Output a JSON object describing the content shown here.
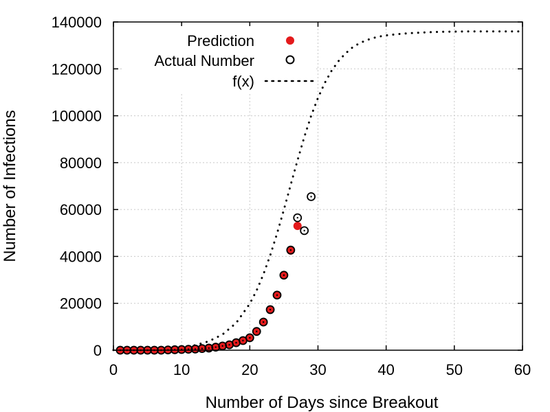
{
  "chart_data": {
    "type": "scatter",
    "xlabel": "Number of Days since Breakout",
    "ylabel": "Number of Infections",
    "xlim": [
      0,
      60
    ],
    "ylim": [
      0,
      140000
    ],
    "xticks": [
      0,
      10,
      20,
      30,
      40,
      50,
      60
    ],
    "yticks": [
      0,
      20000,
      40000,
      60000,
      80000,
      100000,
      120000,
      140000
    ],
    "grid": true,
    "legend_position": "top-left",
    "series": [
      {
        "name": "Prediction",
        "marker": "filled-circle",
        "color": "#e41a1c",
        "x": [
          1,
          2,
          3,
          4,
          5,
          6,
          7,
          8,
          9,
          10,
          11,
          12,
          13,
          14,
          15,
          16,
          17,
          18,
          19,
          20,
          21,
          22,
          23,
          24,
          25,
          26,
          27
        ],
        "y": [
          0,
          0,
          0,
          0,
          0,
          0,
          0,
          100,
          200,
          300,
          400,
          500,
          700,
          900,
          1300,
          1800,
          2300,
          3200,
          4100,
          5300,
          8000,
          12000,
          17300,
          23500,
          32000,
          42500,
          53000
        ]
      },
      {
        "name": "Actual Number",
        "marker": "open-circle",
        "color": "#000000",
        "x": [
          1,
          2,
          3,
          4,
          5,
          6,
          7,
          8,
          9,
          10,
          11,
          12,
          13,
          14,
          15,
          16,
          17,
          18,
          19,
          20,
          21,
          22,
          23,
          24,
          25,
          26,
          27,
          28,
          29
        ],
        "y": [
          0,
          0,
          0,
          0,
          0,
          0,
          0,
          100,
          200,
          300,
          400,
          500,
          700,
          900,
          1300,
          1800,
          2300,
          3200,
          4100,
          5300,
          8000,
          12000,
          17300,
          23500,
          32000,
          42700,
          56500,
          51000,
          65500
        ]
      },
      {
        "name": "f(x)",
        "style": "dotted-line",
        "color": "#000000",
        "x": [
          0,
          2,
          4,
          6,
          8,
          10,
          12,
          14,
          16,
          18,
          20,
          21,
          22,
          23,
          24,
          25,
          26,
          27,
          28,
          29,
          30,
          31,
          32,
          33,
          34,
          35,
          36,
          37,
          38,
          39,
          40,
          42,
          44,
          46,
          48,
          50,
          52,
          54,
          56,
          58,
          60
        ],
        "y": [
          60,
          110,
          200,
          370,
          660,
          1190,
          2140,
          3800,
          6700,
          11600,
          19800,
          25500,
          32400,
          40500,
          49800,
          59900,
          70500,
          81000,
          91000,
          100000,
          107600,
          114000,
          119200,
          123300,
          126500,
          129000,
          130800,
          132100,
          133100,
          133800,
          134300,
          134900,
          135300,
          135600,
          135800,
          135900,
          136000,
          136000,
          136000,
          136000,
          136000
        ]
      }
    ]
  }
}
